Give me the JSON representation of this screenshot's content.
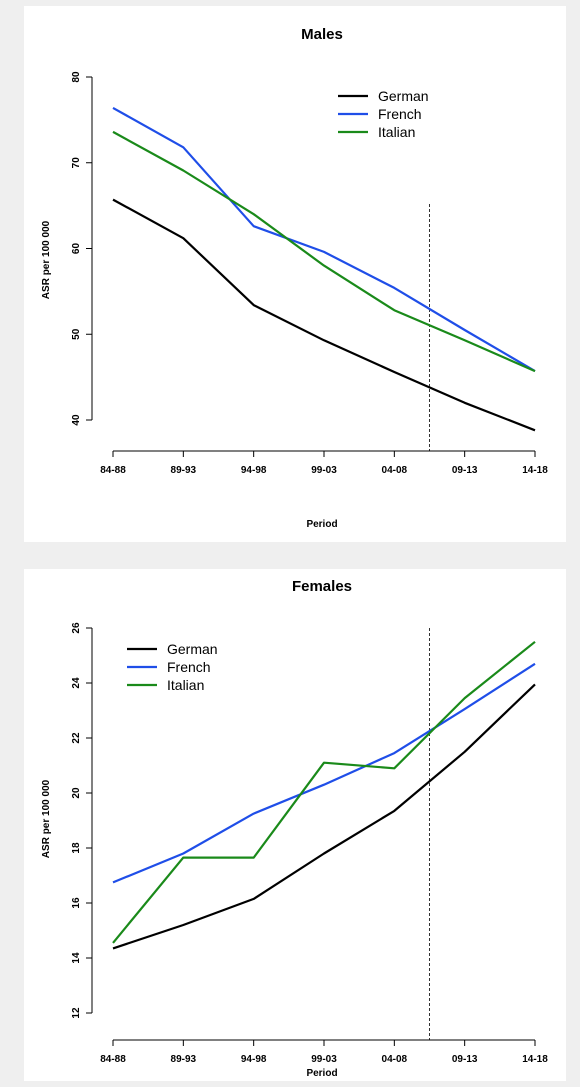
{
  "chart_data": [
    {
      "type": "line",
      "title": "Males",
      "xlabel": "Period",
      "ylabel": "ASR per 100 000",
      "categories": [
        "84-88",
        "89-93",
        "94-98",
        "99-03",
        "04-08",
        "09-13",
        "14-18"
      ],
      "yticks": [
        "40",
        "50",
        "60",
        "70",
        "80"
      ],
      "ylim": [
        40,
        80
      ],
      "reference_line_x": 4.5,
      "legend_position": "top-right",
      "series": [
        {
          "name": "German",
          "color": "#000000",
          "values": [
            65.7,
            61.2,
            53.4,
            49.3,
            45.6,
            42.0,
            38.8
          ]
        },
        {
          "name": "French",
          "color": "#1f4ee8",
          "values": [
            76.4,
            71.8,
            62.6,
            59.6,
            55.4,
            50.5,
            45.7
          ]
        },
        {
          "name": "Italian",
          "color": "#1a8a1a",
          "values": [
            73.6,
            69.1,
            64.0,
            58.0,
            52.8,
            49.3,
            45.7
          ]
        }
      ]
    },
    {
      "type": "line",
      "title": "Females",
      "xlabel": "Period",
      "ylabel": "ASR per 100 000",
      "categories": [
        "84-88",
        "89-93",
        "94-98",
        "99-03",
        "04-08",
        "09-13",
        "14-18"
      ],
      "yticks": [
        "12",
        "14",
        "16",
        "18",
        "20",
        "22",
        "24",
        "26"
      ],
      "ylim": [
        12,
        26
      ],
      "reference_line_x": 4.5,
      "legend_position": "top-left",
      "series": [
        {
          "name": "German",
          "color": "#000000",
          "values": [
            14.35,
            15.2,
            16.15,
            17.8,
            19.35,
            21.5,
            23.95
          ]
        },
        {
          "name": "French",
          "color": "#1f4ee8",
          "values": [
            16.75,
            17.8,
            19.25,
            20.3,
            21.45,
            23.05,
            24.7
          ]
        },
        {
          "name": "Italian",
          "color": "#1a8a1a",
          "values": [
            14.55,
            17.65,
            17.65,
            21.1,
            20.9,
            23.45,
            25.5
          ]
        }
      ]
    }
  ]
}
